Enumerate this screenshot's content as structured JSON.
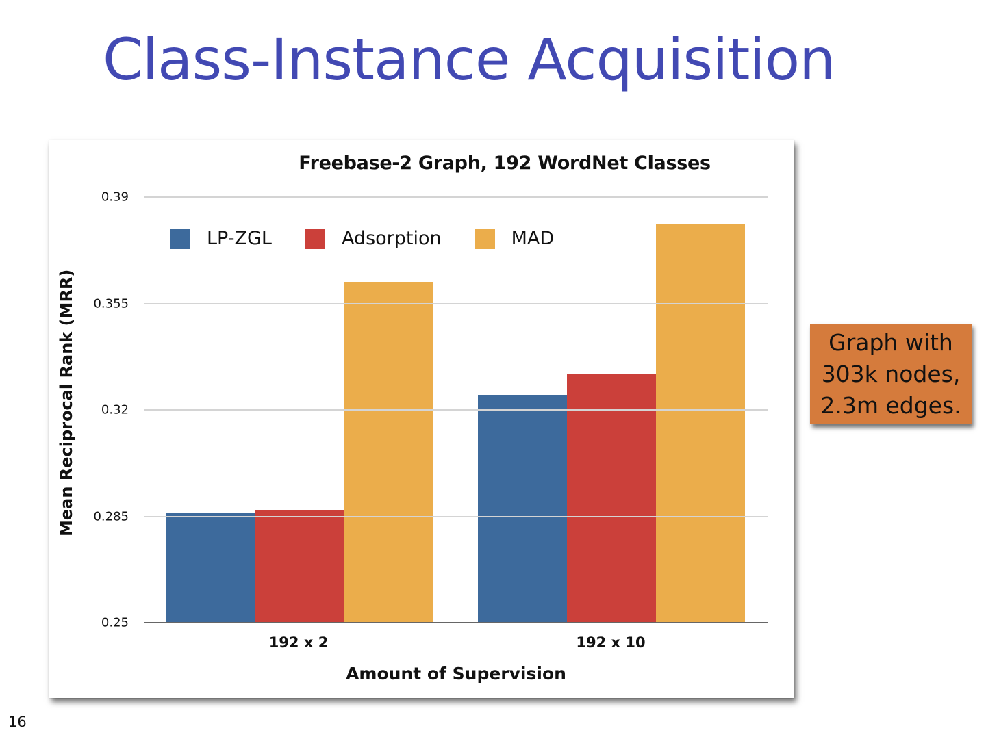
{
  "slide": {
    "title": "Class-Instance Acquisition",
    "page_number": "16"
  },
  "callout": {
    "lines": [
      "Graph with",
      "303k nodes,",
      "2.3m edges."
    ],
    "background": "#d57b3c"
  },
  "chart_data": {
    "type": "bar",
    "title": "Freebase-2 Graph, 192 WordNet Classes",
    "xlabel": "Amount of Supervision",
    "ylabel": "Mean Reciprocal Rank (MRR)",
    "categories": [
      "192 x 2",
      "192 x 10"
    ],
    "series": [
      {
        "name": "LP-ZGL",
        "color": "#3d6a9c",
        "values": [
          0.286,
          0.325
        ]
      },
      {
        "name": "Adsorption",
        "color": "#cb403a",
        "values": [
          0.287,
          0.332
        ]
      },
      {
        "name": "MAD",
        "color": "#ebad4b",
        "values": [
          0.362,
          0.381
        ]
      }
    ],
    "ylim": [
      0.25,
      0.39
    ],
    "yticks": [
      "0.25",
      "0.285",
      "0.32",
      "0.355",
      "0.39"
    ],
    "grid": true,
    "legend_position": "top-inside"
  }
}
